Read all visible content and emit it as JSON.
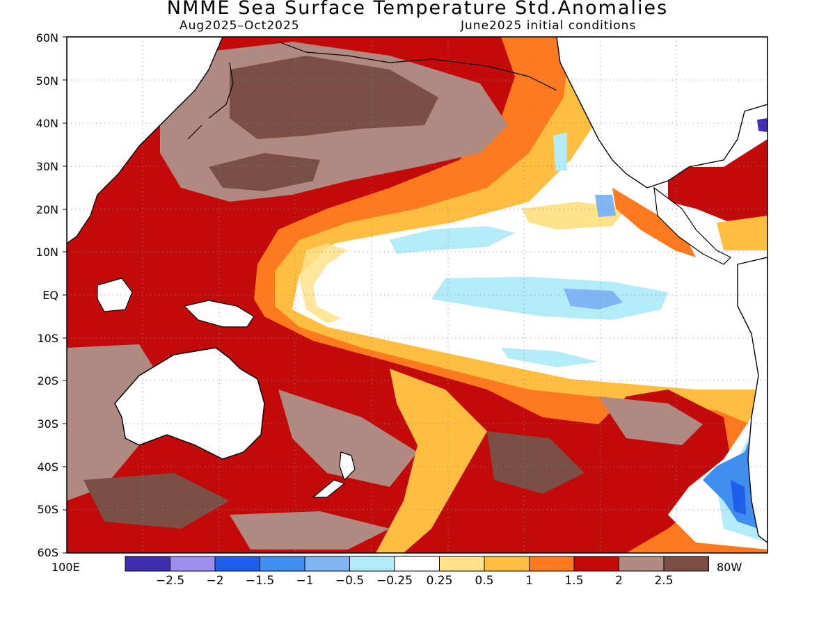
{
  "title": "NMME Sea Surface Temperature Std.Anomalies",
  "subtitle_left": "Aug2025–Oct2025",
  "subtitle_right": "June2025 initial conditions",
  "lat_labels": [
    "60N",
    "50N",
    "40N",
    "30N",
    "20N",
    "10N",
    "EQ",
    "10S",
    "20S",
    "30S",
    "40S",
    "50S",
    "60S"
  ],
  "lon_left_label": "100E",
  "lon_right_label": "80W",
  "colorbar": {
    "colors": [
      "#3f2fb0",
      "#9d8ef0",
      "#1f5ee8",
      "#3f8ef0",
      "#7fb5f5",
      "#b3ecf8",
      "#ffffff",
      "#ffe28a",
      "#ffbe3f",
      "#ff7a1f",
      "#c20a0a",
      "#b08a80",
      "#7a4f45"
    ],
    "labels": [
      "−2.5",
      "−2",
      "−1.5",
      "−1",
      "−0.5",
      "−0.25",
      "0.25",
      "0.5",
      "1",
      "1.5",
      "2",
      "2.5"
    ]
  },
  "map_regions": {
    "far_nw_pacific": "dark brown anomaly > 2.5",
    "tropical_east_pacific": "white near-zero with light blue patches",
    "south_central_pacific": "red / brown warm anomalies",
    "chile_coast": "blue cool anomalies"
  }
}
